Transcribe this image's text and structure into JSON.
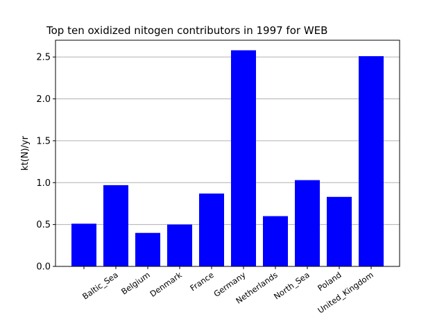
{
  "chart_data": {
    "type": "bar",
    "title": "Top ten oxidized nitogen contributors in 1997 for  WEB",
    "xlabel": "",
    "ylabel": "kt(N)/yr",
    "categories": [
      "",
      "Baltic_Sea",
      "Belgium",
      "Denmark",
      "France",
      "Germany",
      "Netherlands",
      "North_Sea",
      "Poland",
      "United_Kingdom"
    ],
    "values": [
      0.51,
      0.97,
      0.4,
      0.5,
      0.87,
      2.58,
      0.6,
      1.03,
      0.83,
      2.51
    ],
    "ylim": [
      0,
      2.7
    ],
    "yticks": [
      0.0,
      0.5,
      1.0,
      1.5,
      2.0,
      2.5
    ],
    "ytick_labels": [
      "0.0",
      "0.5",
      "1.0",
      "1.5",
      "2.0",
      "2.5"
    ],
    "grid": "y",
    "bar_color": "#0000ff",
    "grid_color": "#b0b0b0"
  }
}
